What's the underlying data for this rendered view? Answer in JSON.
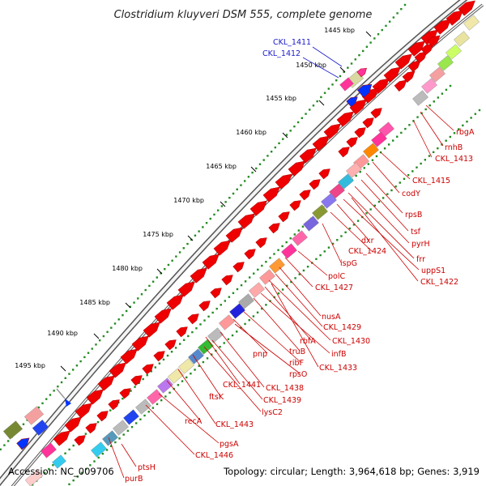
{
  "title": "Clostridium kluyveri DSM 555, complete genome",
  "footer": {
    "accession": "Accession: NC_009706",
    "topology": "Topology: circular; Length: 3,964,618 bp; Genes: 3,919"
  },
  "ticks": [
    "1445 kbp",
    "1450 kbp",
    "1455 kbp",
    "1460 kbp",
    "1465 kbp",
    "1470 kbp",
    "1475 kbp",
    "1480 kbp",
    "1485 kbp",
    "1490 kbp",
    "1495 kbp"
  ],
  "labels_blue": [
    "CKL_1411",
    "CKL_1412"
  ],
  "labels_red": [
    "rbgA",
    "rnhB",
    "CKL_1413",
    "CKL_1415",
    "codY",
    "rpsB",
    "tsf",
    "pyrH",
    "frr",
    "dxr",
    "CKL_1424",
    "uppS1",
    "CKL_1422",
    "ispG",
    "polC",
    "CKL_1427",
    "nusA",
    "CKL_1429",
    "rbfA",
    "CKL_1430",
    "infB",
    "truB",
    "ribF",
    "CKL_1433",
    "pnp",
    "rpsO",
    "CKL_1441",
    "CKL_1438",
    "CKL_1439",
    "ftsK",
    "lysC2",
    "recA",
    "CKL_1443",
    "pgsA",
    "CKL_1446",
    "ptsH",
    "purB"
  ],
  "colors": {
    "gene_red": "#ee0000",
    "label_red": "#cc0000",
    "label_blue": "#1a1acc",
    "dots": "#228b22",
    "backbone": "#666666"
  }
}
